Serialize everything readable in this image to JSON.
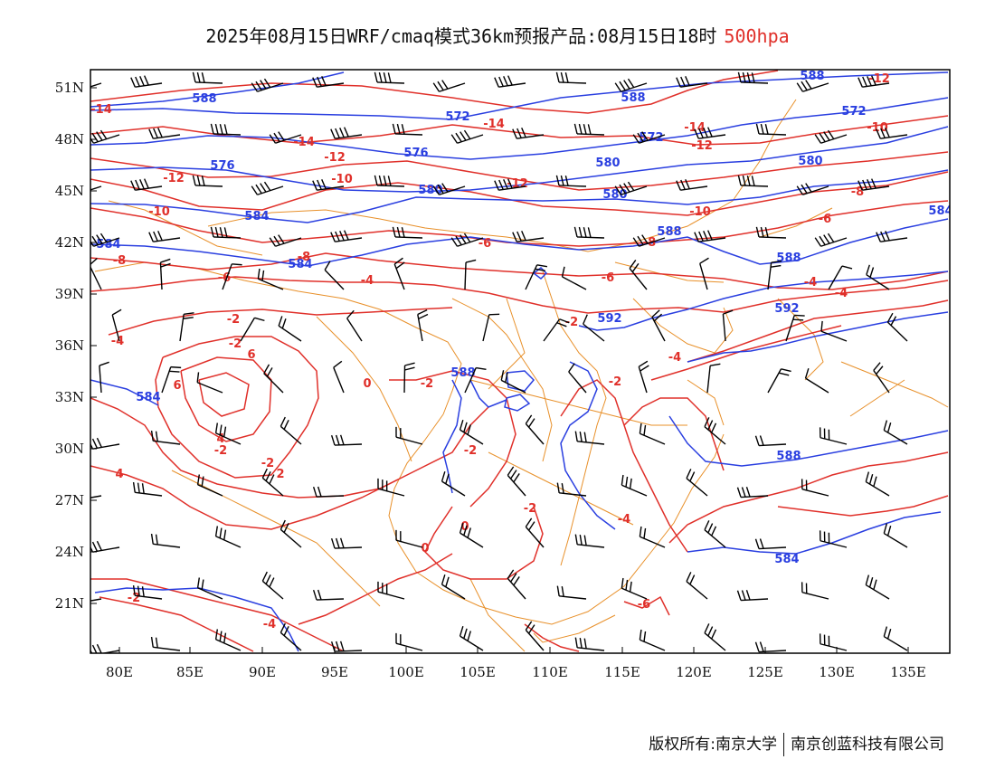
{
  "title": {
    "main": "2025年08月15日WRF/cmaq模式36km预报产品:08月15日18时",
    "level": "500hpa"
  },
  "credit": {
    "left": "版权所有:南京大学",
    "right": "南京创蓝科技有限公司"
  },
  "colors": {
    "height_contour": "#2a3fe0",
    "temperature_contour": "#e0302a",
    "boundary": "#e8902a",
    "wind_barb": "#000000"
  },
  "axes": {
    "lon_labels": [
      "80E",
      "85E",
      "90E",
      "95E",
      "100E",
      "105E",
      "110E",
      "115E",
      "120E",
      "125E",
      "130E",
      "135E"
    ],
    "lat_labels": [
      "51N",
      "48N",
      "45N",
      "42N",
      "39N",
      "36N",
      "33N",
      "30N",
      "27N",
      "24N",
      "21N"
    ]
  },
  "height_labels": [
    "588",
    "588",
    "588",
    "572",
    "572",
    "572",
    "576",
    "576",
    "580",
    "580",
    "580",
    "580",
    "584",
    "584",
    "584",
    "584",
    "588",
    "588",
    "592",
    "592",
    "588",
    "584",
    "588",
    "584"
  ],
  "temperature_labels": [
    "-14",
    "-14",
    "-14",
    "-14",
    "-12",
    "-12",
    "-12",
    "-12",
    "-12",
    "-10",
    "-10",
    "-10",
    "-10",
    "-8",
    "-8",
    "-8",
    "-8",
    "-6",
    "-6",
    "-6",
    "-6",
    "-4",
    "-4",
    "-4",
    "-4",
    "-4",
    "-2",
    "-2",
    "-2",
    "-2",
    "-2",
    "-2",
    "-2",
    "-2",
    "0",
    "0",
    "0",
    "2",
    "4",
    "6",
    "6",
    "4",
    "-2",
    "-2",
    "-4",
    "-4",
    "-6"
  ]
}
